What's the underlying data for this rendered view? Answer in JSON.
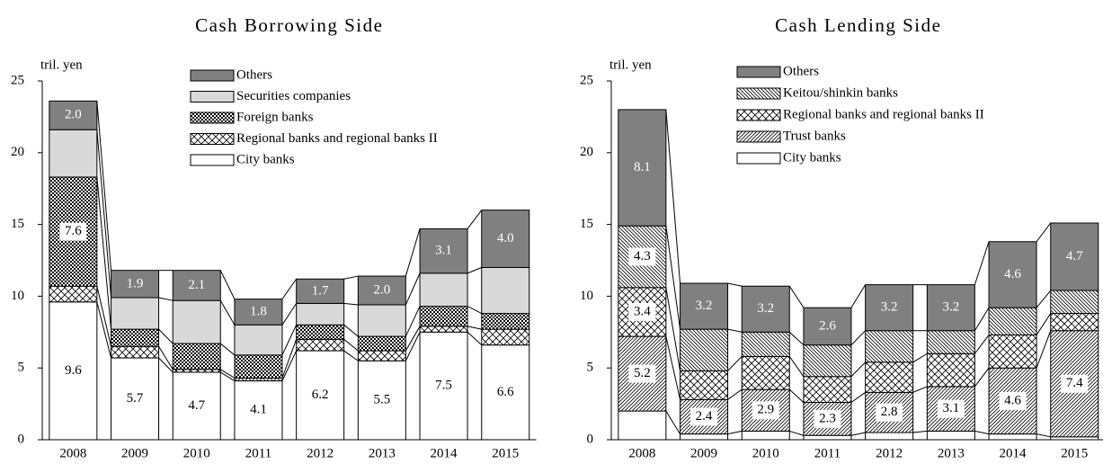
{
  "chart_data": [
    {
      "type": "stacked_bar",
      "title": "Cash Borrowing Side",
      "y_label": "tril. yen",
      "categories": [
        "2008",
        "2009",
        "2010",
        "2011",
        "2012",
        "2013",
        "2014",
        "2015"
      ],
      "ylim": [
        0,
        25
      ],
      "yticks": [
        0,
        5,
        10,
        15,
        20,
        25
      ],
      "series": [
        {
          "name": "City banks",
          "color": "#ffffff",
          "pattern": "solid",
          "values": [
            9.6,
            5.7,
            4.7,
            4.1,
            6.2,
            5.5,
            7.5,
            6.6
          ],
          "value_labels": [
            "9.6",
            "5.7",
            "4.7",
            "4.1",
            "6.2",
            "5.5",
            "7.5",
            "6.6"
          ]
        },
        {
          "name": "Regional banks and regional banks II",
          "color": "#000000",
          "pattern": "cross",
          "values": [
            1.1,
            0.8,
            0.2,
            0.2,
            0.8,
            0.7,
            0.4,
            1.1
          ]
        },
        {
          "name": "Foreign banks",
          "color": "#000000",
          "pattern": "checker",
          "values": [
            7.6,
            1.2,
            1.8,
            1.6,
            1.0,
            1.0,
            1.4,
            1.1
          ],
          "value_labels": [
            "7.6",
            null,
            null,
            null,
            null,
            null,
            null,
            null
          ]
        },
        {
          "name": "Securities companies",
          "color": "#d9d9d9",
          "pattern": "solid",
          "values": [
            3.3,
            2.2,
            3.0,
            2.1,
            1.5,
            2.2,
            2.3,
            3.2
          ]
        },
        {
          "name": "Others",
          "color": "#808080",
          "pattern": "solid",
          "values": [
            2.0,
            1.9,
            2.1,
            1.8,
            1.7,
            2.0,
            3.1,
            4.0
          ],
          "value_labels": [
            "2.0",
            "1.9",
            "2.1",
            "1.8",
            "1.7",
            "2.0",
            "3.1",
            "4.0"
          ]
        }
      ]
    },
    {
      "type": "stacked_bar",
      "title": "Cash Lending Side",
      "y_label": "tril. yen",
      "categories": [
        "2008",
        "2009",
        "2010",
        "2011",
        "2012",
        "2013",
        "2014",
        "2015"
      ],
      "ylim": [
        0,
        25
      ],
      "yticks": [
        0,
        5,
        10,
        15,
        20,
        25
      ],
      "series": [
        {
          "name": "City banks",
          "color": "#ffffff",
          "pattern": "solid",
          "values": [
            2.0,
            0.4,
            0.6,
            0.3,
            0.5,
            0.6,
            0.4,
            0.2
          ]
        },
        {
          "name": "Trust banks",
          "color": "#000000",
          "pattern": "diagonal",
          "values": [
            5.2,
            2.4,
            2.9,
            2.3,
            2.8,
            3.1,
            4.6,
            7.4
          ],
          "value_labels": [
            "5.2",
            "2.4",
            "2.9",
            "2.3",
            "2.8",
            "3.1",
            "4.6",
            "7.4"
          ]
        },
        {
          "name": "Regional banks and regional banks II",
          "color": "#000000",
          "pattern": "cross",
          "values": [
            3.4,
            2.0,
            2.3,
            1.8,
            2.1,
            2.3,
            2.3,
            1.2
          ],
          "value_labels": [
            "3.4",
            null,
            null,
            null,
            null,
            null,
            null,
            null
          ]
        },
        {
          "name": "Keitou/shinkin banks",
          "color": "#000000",
          "pattern": "backdiag",
          "values": [
            4.3,
            2.9,
            1.7,
            2.2,
            2.2,
            1.6,
            1.9,
            1.6
          ],
          "value_labels": [
            "4.3",
            null,
            null,
            null,
            null,
            null,
            null,
            null
          ]
        },
        {
          "name": "Others",
          "color": "#808080",
          "pattern": "solid",
          "values": [
            8.1,
            3.2,
            3.2,
            2.6,
            3.2,
            3.2,
            4.6,
            4.7
          ],
          "value_labels": [
            "8.1",
            "3.2",
            "3.2",
            "2.6",
            "3.2",
            "3.2",
            "4.6",
            "4.7"
          ]
        }
      ]
    }
  ]
}
